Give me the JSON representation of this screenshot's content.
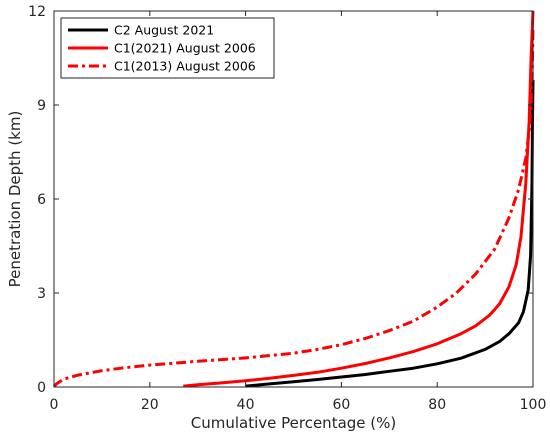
{
  "chart_data": {
    "type": "line",
    "xlabel": "Cumulative Percentage (%)",
    "ylabel": "Penetration Depth (km)",
    "xlim": [
      0,
      100
    ],
    "ylim": [
      0,
      12
    ],
    "xticks": [
      0,
      20,
      40,
      60,
      80,
      100
    ],
    "yticks": [
      0,
      3,
      6,
      9,
      12
    ],
    "x_tick_labels": [
      "0",
      "20",
      "40",
      "60",
      "80",
      "100"
    ],
    "y_tick_labels": [
      "0",
      "3",
      "6",
      "9",
      "12"
    ],
    "grid": false,
    "legend_position": "top-left",
    "series": [
      {
        "name": "C2 August 2021",
        "color": "#000000",
        "style": "solid",
        "points": [
          [
            40,
            0.03
          ],
          [
            45,
            0.1
          ],
          [
            50,
            0.17
          ],
          [
            55,
            0.24
          ],
          [
            60,
            0.32
          ],
          [
            65,
            0.4
          ],
          [
            70,
            0.5
          ],
          [
            75,
            0.6
          ],
          [
            80,
            0.74
          ],
          [
            85,
            0.92
          ],
          [
            90,
            1.2
          ],
          [
            93,
            1.45
          ],
          [
            95,
            1.7
          ],
          [
            97,
            2.05
          ],
          [
            98,
            2.4
          ],
          [
            99,
            3.1
          ],
          [
            99.5,
            4.2
          ],
          [
            99.8,
            6.5
          ],
          [
            99.9,
            8.5
          ],
          [
            100,
            9.8
          ]
        ]
      },
      {
        "name": "C1(2021) August 2006",
        "color": "#ff0000",
        "style": "solid",
        "points": [
          [
            27,
            0.03
          ],
          [
            30,
            0.07
          ],
          [
            35,
            0.13
          ],
          [
            40,
            0.2
          ],
          [
            45,
            0.28
          ],
          [
            50,
            0.37
          ],
          [
            55,
            0.47
          ],
          [
            60,
            0.6
          ],
          [
            65,
            0.75
          ],
          [
            70,
            0.93
          ],
          [
            75,
            1.13
          ],
          [
            80,
            1.38
          ],
          [
            85,
            1.7
          ],
          [
            88,
            1.95
          ],
          [
            91,
            2.3
          ],
          [
            93,
            2.65
          ],
          [
            95,
            3.2
          ],
          [
            96.5,
            3.9
          ],
          [
            97.5,
            4.8
          ],
          [
            98.5,
            6.5
          ],
          [
            99.2,
            8.5
          ],
          [
            99.6,
            10.5
          ],
          [
            100,
            12
          ]
        ]
      },
      {
        "name": "C1(2013) August 2006",
        "color": "#ff0000",
        "style": "dashdot",
        "points": [
          [
            0,
            0.02
          ],
          [
            0.5,
            0.1
          ],
          [
            2,
            0.25
          ],
          [
            5,
            0.38
          ],
          [
            10,
            0.52
          ],
          [
            15,
            0.62
          ],
          [
            20,
            0.7
          ],
          [
            30,
            0.82
          ],
          [
            40,
            0.93
          ],
          [
            50,
            1.08
          ],
          [
            55,
            1.2
          ],
          [
            60,
            1.35
          ],
          [
            65,
            1.55
          ],
          [
            70,
            1.8
          ],
          [
            75,
            2.1
          ],
          [
            80,
            2.55
          ],
          [
            84,
            3.0
          ],
          [
            88,
            3.6
          ],
          [
            92,
            4.4
          ],
          [
            95,
            5.4
          ],
          [
            97,
            6.3
          ],
          [
            98.5,
            7.3
          ],
          [
            99.3,
            8.3
          ],
          [
            99.8,
            9.6
          ],
          [
            100,
            11.5
          ]
        ]
      }
    ]
  }
}
